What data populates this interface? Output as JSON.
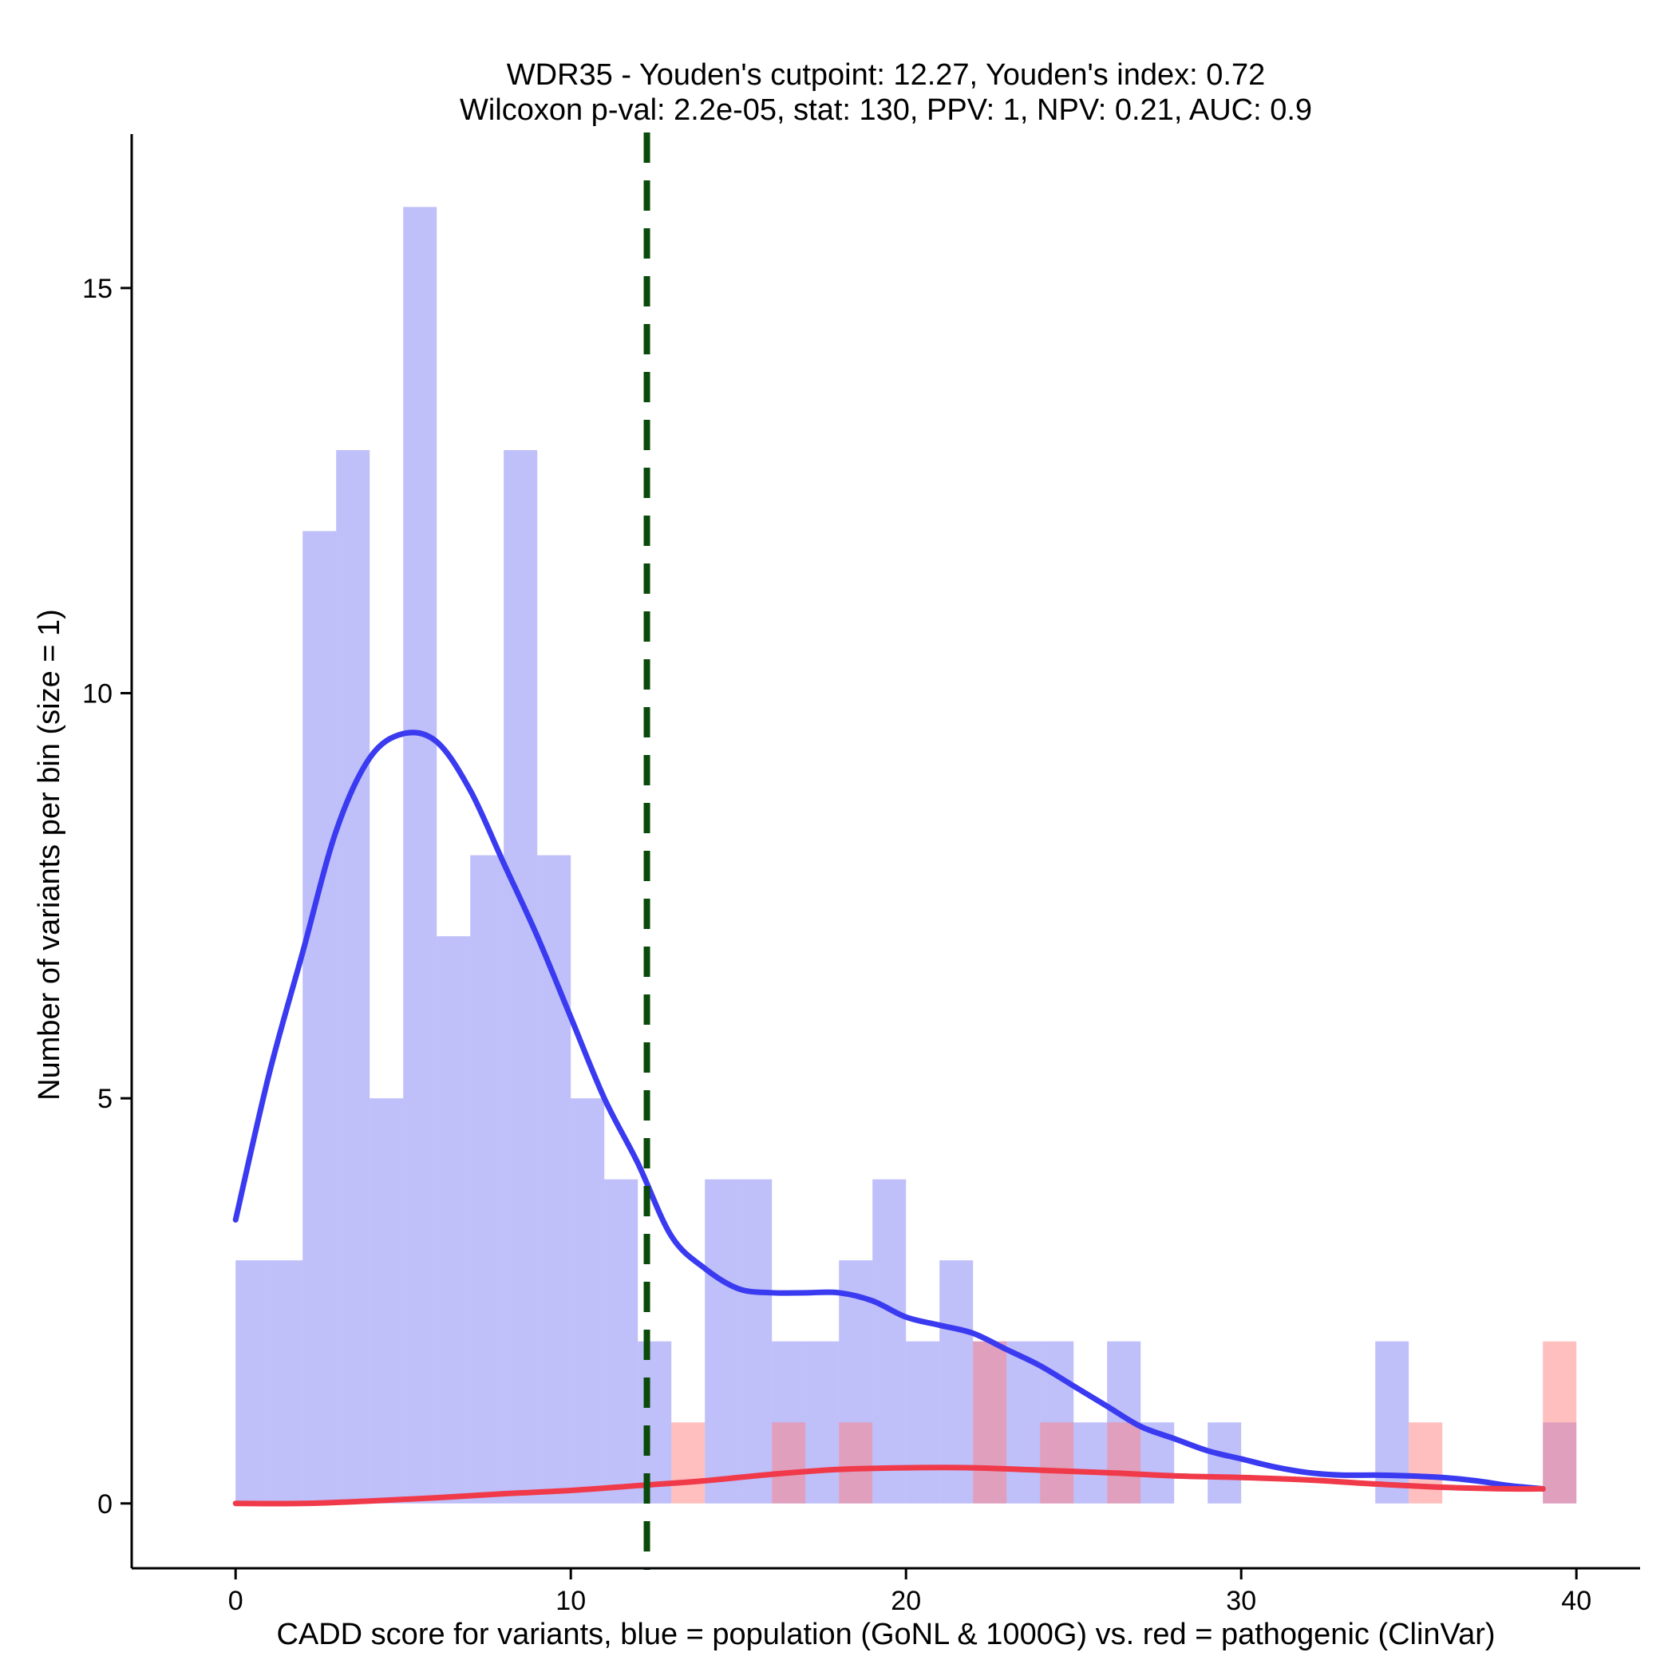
{
  "chart_data": {
    "type": "bar",
    "title_line1": "WDR35 - Youden's cutpoint: 12.27, Youden's index: 0.72",
    "title_line2": "Wilcoxon p-val: 2.2e-05, stat: 130, PPV: 1, NPV: 0.21, AUC: 0.9",
    "xlabel": "CADD score for variants, blue = population (GoNL & 1000G) vs. red = pathogenic (ClinVar)",
    "ylabel": "Number of variants per bin (size = 1)",
    "xlim": [
      -3.1,
      41.9
    ],
    "ylim": [
      -0.8,
      16.9
    ],
    "xticks": [
      0,
      10,
      20,
      30,
      40
    ],
    "xtick_labels": [
      "0",
      "10",
      "20",
      "30",
      "40"
    ],
    "yticks": [
      0,
      5,
      10,
      15
    ],
    "ytick_labels": [
      "0",
      "5",
      "10",
      "15"
    ],
    "bin_width": 1,
    "cutpoint": 12.27,
    "series": [
      {
        "name": "population (GoNL & 1000G)",
        "color": "#8080f5",
        "opacity": 0.5,
        "bin_starts": [
          0,
          1,
          2,
          3,
          4,
          5,
          6,
          7,
          8,
          9,
          10,
          11,
          12,
          13,
          14,
          15,
          16,
          17,
          18,
          19,
          20,
          21,
          22,
          23,
          24,
          25,
          26,
          27,
          28,
          29,
          30,
          31,
          32,
          33,
          34,
          35,
          36,
          37,
          38,
          39
        ],
        "values": [
          3,
          3,
          12,
          13,
          5,
          16,
          7,
          8,
          13,
          8,
          5,
          4,
          2,
          0,
          4,
          4,
          2,
          2,
          3,
          4,
          2,
          3,
          2,
          2,
          2,
          1,
          2,
          1,
          0,
          1,
          0,
          0,
          0,
          0,
          2,
          0,
          0,
          0,
          0,
          1
        ]
      },
      {
        "name": "pathogenic (ClinVar)",
        "color": "#ff8080",
        "opacity": 0.5,
        "bin_starts": [
          0,
          1,
          2,
          3,
          4,
          5,
          6,
          7,
          8,
          9,
          10,
          11,
          12,
          13,
          14,
          15,
          16,
          17,
          18,
          19,
          20,
          21,
          22,
          23,
          24,
          25,
          26,
          27,
          28,
          29,
          30,
          31,
          32,
          33,
          34,
          35,
          36,
          37,
          38,
          39
        ],
        "values": [
          0,
          0,
          0,
          0,
          0,
          0,
          0,
          0,
          0,
          0,
          0,
          0,
          0,
          1,
          0,
          0,
          1,
          0,
          1,
          0,
          0,
          0,
          2,
          0,
          1,
          0,
          1,
          0,
          0,
          0,
          0,
          0,
          0,
          0,
          0,
          1,
          0,
          0,
          0,
          2
        ]
      }
    ],
    "density_lines": [
      {
        "name": "population density",
        "color": "#3a3af0",
        "x": [
          0,
          1,
          2,
          3,
          4,
          5,
          6,
          7,
          8,
          9,
          10,
          11,
          12,
          13,
          14,
          15,
          16,
          17,
          18,
          19,
          20,
          21,
          22,
          23,
          24,
          25,
          26,
          27,
          28,
          29,
          30,
          31,
          32,
          33,
          34,
          35,
          36,
          37,
          38,
          39
        ],
        "y": [
          3.5,
          5.3,
          6.8,
          8.3,
          9.2,
          9.5,
          9.4,
          8.8,
          7.9,
          7.0,
          6.0,
          5.0,
          4.2,
          3.3,
          2.9,
          2.65,
          2.6,
          2.6,
          2.6,
          2.5,
          2.3,
          2.2,
          2.1,
          1.9,
          1.7,
          1.45,
          1.2,
          0.95,
          0.8,
          0.65,
          0.55,
          0.45,
          0.38,
          0.35,
          0.35,
          0.34,
          0.32,
          0.28,
          0.22,
          0.18
        ]
      },
      {
        "name": "pathogenic density",
        "color": "#f03a4a",
        "x": [
          0,
          2,
          4,
          6,
          8,
          10,
          12,
          14,
          16,
          18,
          20,
          22,
          24,
          26,
          28,
          30,
          32,
          34,
          36,
          38,
          39
        ],
        "y": [
          0,
          0,
          0.03,
          0.07,
          0.12,
          0.16,
          0.22,
          0.28,
          0.36,
          0.42,
          0.44,
          0.44,
          0.41,
          0.38,
          0.34,
          0.32,
          0.29,
          0.24,
          0.2,
          0.18,
          0.18
        ]
      }
    ]
  }
}
